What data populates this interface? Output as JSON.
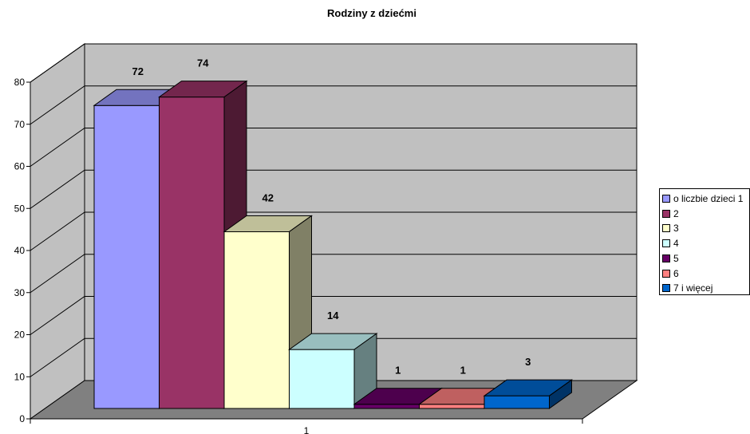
{
  "chart_data": {
    "type": "bar",
    "title": "Rodziny z dziećmi",
    "categories": [
      "1"
    ],
    "series": [
      {
        "name": "o liczbie dzieci 1",
        "values": [
          72
        ],
        "color": "#9999ff"
      },
      {
        "name": "2",
        "values": [
          74
        ],
        "color": "#993366"
      },
      {
        "name": "3",
        "values": [
          42
        ],
        "color": "#ffffcc"
      },
      {
        "name": "4",
        "values": [
          14
        ],
        "color": "#ccffff"
      },
      {
        "name": "5",
        "values": [
          1
        ],
        "color": "#660066"
      },
      {
        "name": "6",
        "values": [
          1
        ],
        "color": "#ff8080"
      },
      {
        "name": "7 i więcej",
        "values": [
          3
        ],
        "color": "#0066cc"
      }
    ],
    "y_ticks": [
      "0",
      "10",
      "20",
      "30",
      "40",
      "50",
      "60",
      "70",
      "80"
    ],
    "ylim": [
      0,
      80
    ],
    "grid": true,
    "legend_position": "right",
    "style": "3d-bar",
    "wall_color": "#c0c0c0",
    "floor_color": "#808080"
  }
}
